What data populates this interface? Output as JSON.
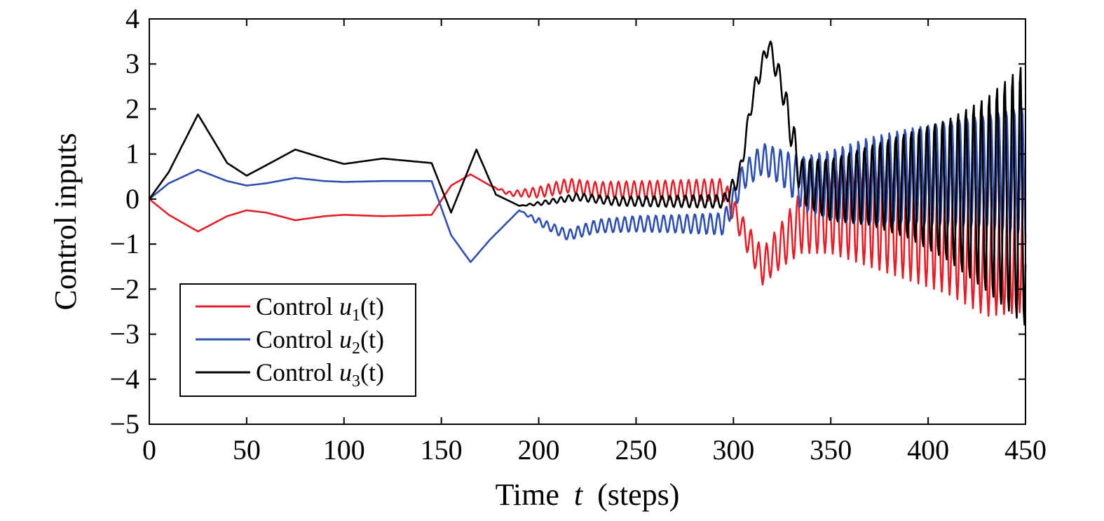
{
  "chart_data": {
    "type": "line",
    "title": "",
    "xlabel": "Time",
    "xlabel_var": "t",
    "xlabel_unit": "(steps)",
    "ylabel": "Control inputs",
    "xlim": [
      0,
      450
    ],
    "ylim": [
      -5,
      4
    ],
    "xticks": [
      0,
      50,
      100,
      150,
      200,
      250,
      300,
      350,
      400,
      450
    ],
    "yticks": [
      4,
      3,
      2,
      1,
      0,
      -1,
      -2,
      -3,
      -4,
      -5
    ],
    "ytick_labels": [
      "4",
      "3",
      "2",
      "1",
      "0",
      "−1",
      "−2",
      "−3",
      "−4",
      "−5"
    ],
    "grid": false,
    "legend_position": "bottom-left",
    "series": [
      {
        "name": "Control u1(t)",
        "legend_prefix": "Control",
        "legend_var": "u",
        "legend_sub": "1",
        "legend_arg": "(t)",
        "color": "#e0202a",
        "x": [
          0,
          10,
          25,
          40,
          50,
          60,
          75,
          90,
          100,
          120,
          145,
          155,
          165,
          175,
          185,
          200,
          215,
          230,
          250,
          270,
          295,
          305,
          315,
          325,
          335,
          350,
          370,
          390,
          410,
          430,
          450
        ],
        "y": [
          0,
          -0.35,
          -0.72,
          -0.38,
          -0.25,
          -0.3,
          -0.47,
          -0.38,
          -0.35,
          -0.38,
          -0.35,
          0.3,
          0.55,
          0.3,
          0.12,
          0.15,
          0.3,
          0.2,
          0.2,
          0.2,
          0.2,
          -0.7,
          -1.5,
          -1.0,
          -0.5,
          -0.3,
          -0.4,
          -0.6,
          -0.8,
          -1.2,
          -1.0
        ],
        "oscillation": [
          0,
          0,
          0,
          0,
          0,
          0,
          0,
          0,
          0,
          0,
          0,
          0,
          0,
          0,
          0.05,
          0.12,
          0.16,
          0.18,
          0.2,
          0.22,
          0.25,
          0.3,
          0.4,
          0.5,
          0.7,
          0.9,
          1.1,
          1.2,
          1.3,
          1.4,
          1.5
        ]
      },
      {
        "name": "Control u2(t)",
        "legend_prefix": "Control",
        "legend_var": "u",
        "legend_sub": "2",
        "legend_arg": "(t)",
        "color": "#2f4fae",
        "x": [
          0,
          10,
          25,
          40,
          50,
          60,
          75,
          90,
          100,
          120,
          145,
          155,
          165,
          175,
          190,
          200,
          215,
          230,
          250,
          270,
          295,
          305,
          315,
          325,
          335,
          350,
          370,
          390,
          410,
          430,
          450
        ],
        "y": [
          0,
          0.35,
          0.65,
          0.4,
          0.3,
          0.35,
          0.47,
          0.4,
          0.38,
          0.4,
          0.4,
          -0.8,
          -1.4,
          -0.9,
          -0.25,
          -0.5,
          -0.8,
          -0.6,
          -0.55,
          -0.55,
          -0.55,
          0.5,
          0.9,
          0.7,
          0.35,
          0.3,
          0.4,
          0.5,
          0.55,
          0.6,
          0.6
        ],
        "oscillation": [
          0,
          0,
          0,
          0,
          0,
          0,
          0,
          0,
          0,
          0,
          0,
          0,
          0,
          0,
          0,
          0.08,
          0.12,
          0.15,
          0.18,
          0.2,
          0.25,
          0.3,
          0.35,
          0.4,
          0.6,
          0.8,
          1.0,
          1.1,
          1.2,
          1.3,
          1.5
        ]
      },
      {
        "name": "Control u3(t)",
        "legend_prefix": "Control",
        "legend_var": "u",
        "legend_sub": "3",
        "legend_arg": "(t)",
        "color": "#000000",
        "x": [
          0,
          10,
          25,
          40,
          50,
          60,
          75,
          90,
          100,
          120,
          145,
          155,
          168,
          178,
          190,
          200,
          220,
          240,
          260,
          280,
          295,
          303,
          310,
          318,
          325,
          335,
          350,
          370,
          390,
          410,
          430,
          450
        ],
        "y": [
          0,
          0.6,
          1.88,
          0.8,
          0.52,
          0.75,
          1.1,
          0.9,
          0.78,
          0.9,
          0.8,
          -0.3,
          1.1,
          0.1,
          -0.15,
          -0.1,
          0.05,
          -0.05,
          -0.05,
          -0.05,
          -0.05,
          0.5,
          2.3,
          3.45,
          2.5,
          0.4,
          0.2,
          0.3,
          0.3,
          0.2,
          0.1,
          0.1
        ],
        "oscillation": [
          0,
          0,
          0,
          0,
          0,
          0,
          0,
          0,
          0,
          0,
          0,
          0,
          0,
          0,
          0,
          0.04,
          0.08,
          0.1,
          0.12,
          0.14,
          0.15,
          0.2,
          0.2,
          0.2,
          0.3,
          0.5,
          0.7,
          0.9,
          1.2,
          1.6,
          2.2,
          3.0
        ]
      }
    ]
  }
}
